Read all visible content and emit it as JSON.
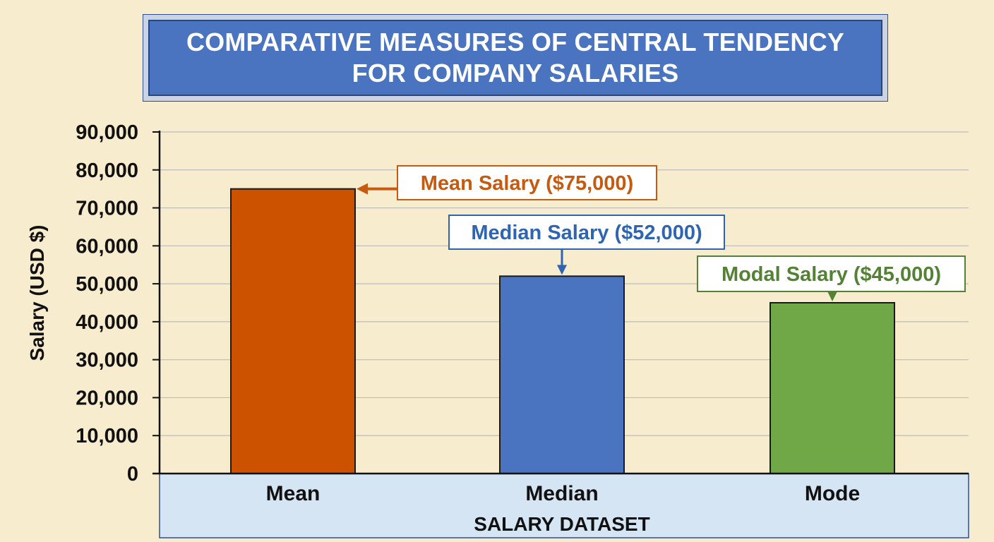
{
  "chart_data": {
    "type": "bar",
    "title": "COMPARATIVE MEASURES OF CENTRAL TENDENCY FOR COMPANY SALARIES",
    "title_lines": [
      "COMPARATIVE MEASURES OF CENTRAL TENDENCY",
      "FOR COMPANY SALARIES"
    ],
    "xlabel": "SALARY DATASET",
    "ylabel": "Salary (USD $)",
    "categories": [
      "Mean",
      "Median",
      "Mode"
    ],
    "values": [
      75000,
      52000,
      45000
    ],
    "colors": [
      "#cc5200",
      "#4a73c0",
      "#70a847"
    ],
    "ylim": [
      0,
      90000
    ],
    "yticks": [
      0,
      10000,
      20000,
      30000,
      40000,
      50000,
      60000,
      70000,
      80000,
      90000
    ],
    "ytick_labels": [
      "0",
      "10,000",
      "20,000",
      "30,000",
      "40,000",
      "50,000",
      "60,000",
      "70,000",
      "80,000",
      "90,000"
    ],
    "grid": true,
    "annotations": [
      {
        "text": "Mean Salary ($75,000)",
        "category": "Mean",
        "color": "#c55a11",
        "arrow": "left"
      },
      {
        "text": "Median Salary ($52,000)",
        "category": "Median",
        "color": "#2e64b0",
        "arrow": "down"
      },
      {
        "text": "Modal Salary ($45,000)",
        "category": "Mode",
        "color": "#548235",
        "arrow": "down"
      }
    ]
  },
  "colors": {
    "background": "#f8eccf",
    "title_fill": "#4a73c0",
    "title_text": "#ffffff",
    "xaxis_band": "#d5e5f3",
    "grid": "#bcbcbc",
    "axis": "#111111"
  }
}
